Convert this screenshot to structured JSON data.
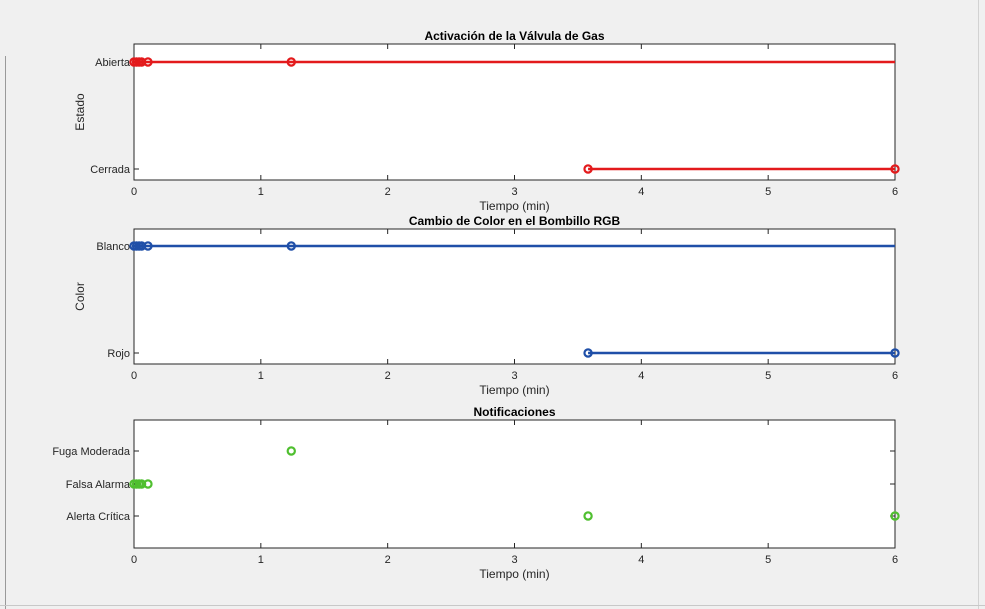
{
  "chart_data": [
    {
      "type": "line",
      "title": "Activación de la Válvula de Gas",
      "xlabel": "Tiempo (min)",
      "ylabel": "Estado",
      "xlim": [
        0,
        6
      ],
      "xticks": [
        "0",
        "1",
        "2",
        "3",
        "4",
        "5",
        "6"
      ],
      "categories": [
        "Cerrada",
        "Abierta"
      ],
      "color": "#e31a1c",
      "markers": "open-circle",
      "line_style": "horizontal-step",
      "grid": false,
      "series": [
        {
          "x": [
            0.0,
            0.02,
            0.04,
            0.06,
            0.11,
            1.24,
            3.58,
            6.0
          ],
          "y": [
            "Abierta",
            "Abierta",
            "Abierta",
            "Abierta",
            "Abierta",
            "Abierta",
            "Cerrada",
            "Cerrada"
          ]
        }
      ]
    },
    {
      "type": "line",
      "title": "Cambio de Color en el Bombillo RGB",
      "xlabel": "Tiempo (min)",
      "ylabel": "Color",
      "xlim": [
        0,
        6
      ],
      "xticks": [
        "0",
        "1",
        "2",
        "3",
        "4",
        "5",
        "6"
      ],
      "categories": [
        "Rojo",
        "Blanco"
      ],
      "color": "#1f4fa8",
      "markers": "open-circle",
      "line_style": "horizontal-step",
      "grid": false,
      "series": [
        {
          "x": [
            0.0,
            0.02,
            0.04,
            0.06,
            0.11,
            1.24,
            3.58,
            6.0
          ],
          "y": [
            "Blanco",
            "Blanco",
            "Blanco",
            "Blanco",
            "Blanco",
            "Blanco",
            "Rojo",
            "Rojo"
          ]
        }
      ]
    },
    {
      "type": "scatter",
      "title": "Notificaciones",
      "xlabel": "Tiempo (min)",
      "ylabel": "",
      "xlim": [
        0,
        6
      ],
      "xticks": [
        "0",
        "1",
        "2",
        "3",
        "4",
        "5",
        "6"
      ],
      "categories": [
        "Alerta Crítica",
        "Falsa Alarma",
        "Fuga Moderada"
      ],
      "color": "#4fbf2f",
      "markers": "open-circle",
      "grid": false,
      "series": [
        {
          "x": [
            0.0,
            0.02,
            0.04,
            0.06,
            0.11,
            1.24,
            3.58,
            6.0
          ],
          "y": [
            "Falsa Alarma",
            "Falsa Alarma",
            "Falsa Alarma",
            "Falsa Alarma",
            "Falsa Alarma",
            "Fuga Moderada",
            "Alerta Crítica",
            "Alerta Crítica"
          ]
        }
      ]
    }
  ]
}
